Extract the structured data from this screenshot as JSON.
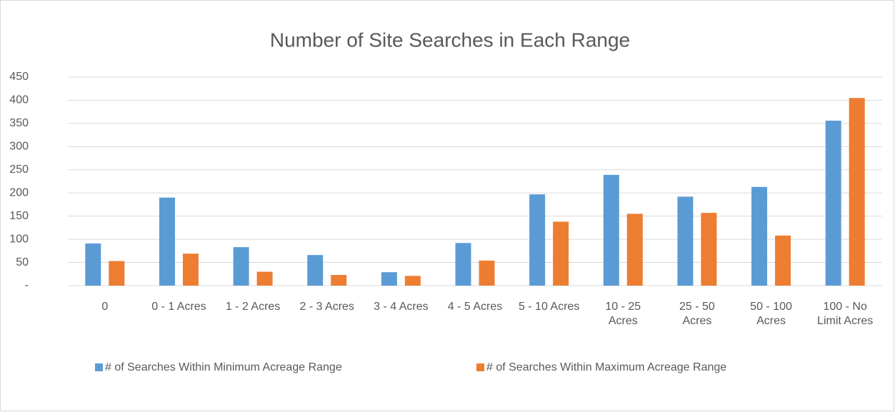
{
  "chart_data": {
    "type": "bar",
    "title": "Number of Site Searches in Each Range",
    "categories": [
      "0",
      "0 - 1 Acres",
      "1 - 2 Acres",
      "2 - 3 Acres",
      "3 - 4 Acres",
      "4 - 5 Acres",
      "5 - 10 Acres",
      "10 - 25 Acres",
      "25 - 50 Acres",
      "50 - 100 Acres",
      "100 - No Limit Acres"
    ],
    "series": [
      {
        "name": "# of Searches Within Minimum Acreage Range",
        "color": "#5b9bd5",
        "values": [
          91,
          190,
          83,
          66,
          29,
          92,
          197,
          239,
          192,
          213,
          356
        ]
      },
      {
        "name": "# of Searches Within Maximum Acreage Range",
        "color": "#ed7d31",
        "values": [
          53,
          69,
          30,
          23,
          21,
          54,
          138,
          155,
          157,
          108,
          405
        ]
      }
    ],
    "ylim": [
      0,
      450
    ],
    "yticks": [
      {
        "value": 0,
        "label": "-"
      },
      50,
      100,
      150,
      200,
      250,
      300,
      350,
      400,
      450
    ],
    "grid": true,
    "legend": "bottom"
  }
}
